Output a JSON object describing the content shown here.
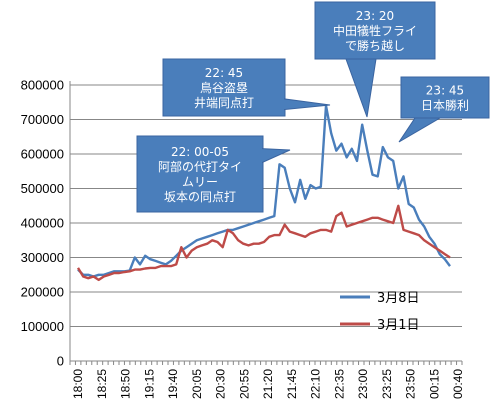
{
  "chart_data": {
    "type": "line",
    "ylim": [
      0,
      800000
    ],
    "y_ticks": [
      "0",
      "100000",
      "200000",
      "300000",
      "400000",
      "500000",
      "600000",
      "700000",
      "800000"
    ],
    "x_tick_labels": [
      "18:00",
      "18:25",
      "18:50",
      "19:15",
      "19:40",
      "20:05",
      "20:30",
      "20:55",
      "21:20",
      "21:45",
      "22:10",
      "22:35",
      "23:00",
      "23:25",
      "23:50",
      "00:15",
      "00:40"
    ],
    "grid": "horizontal",
    "legend_position": "bottom-right",
    "series": [
      {
        "name": "3月8日",
        "color": "#4a7ebb",
        "values": [
          265000,
          250000,
          250000,
          245000,
          250000,
          250000,
          255000,
          260000,
          260000,
          260000,
          262000,
          300000,
          280000,
          305000,
          295000,
          290000,
          285000,
          280000,
          290000,
          305000,
          320000,
          330000,
          340000,
          350000,
          355000,
          360000,
          365000,
          370000,
          375000,
          380000,
          380000,
          385000,
          390000,
          395000,
          400000,
          405000,
          410000,
          415000,
          420000,
          570000,
          560000,
          500000,
          460000,
          525000,
          470000,
          510000,
          500000,
          505000,
          740000,
          660000,
          610000,
          630000,
          590000,
          615000,
          580000,
          685000,
          610000,
          540000,
          535000,
          620000,
          590000,
          580000,
          500000,
          535000,
          455000,
          445000,
          410000,
          390000,
          360000,
          340000,
          310000,
          295000,
          275000
        ]
      },
      {
        "name": "3月1日",
        "color": "#be4b48",
        "values": [
          270000,
          245000,
          240000,
          245000,
          235000,
          245000,
          250000,
          255000,
          255000,
          258000,
          260000,
          265000,
          265000,
          268000,
          270000,
          270000,
          275000,
          275000,
          275000,
          280000,
          330000,
          300000,
          320000,
          330000,
          335000,
          340000,
          350000,
          345000,
          330000,
          380000,
          370000,
          350000,
          340000,
          335000,
          340000,
          340000,
          345000,
          360000,
          365000,
          365000,
          395000,
          375000,
          370000,
          365000,
          360000,
          370000,
          375000,
          380000,
          380000,
          375000,
          420000,
          430000,
          390000,
          395000,
          400000,
          405000,
          410000,
          415000,
          415000,
          410000,
          405000,
          400000,
          450000,
          380000,
          375000,
          370000,
          365000,
          350000,
          340000,
          330000,
          320000,
          310000,
          300000
        ]
      }
    ],
    "annotations": [
      {
        "id": "c1",
        "lines": [
          "22: 00-05",
          "阿部の代打タイ",
          "ムリー",
          "坂本の同点打"
        ]
      },
      {
        "id": "c2",
        "lines": [
          "22: 45",
          "鳥谷盗塁",
          "井端同点打"
        ]
      },
      {
        "id": "c3",
        "lines": [
          "23: 20",
          "中田犠牲フライ",
          "で勝ち越し"
        ]
      },
      {
        "id": "c4",
        "lines": [
          "23: 45",
          "日本勝利"
        ]
      }
    ]
  }
}
